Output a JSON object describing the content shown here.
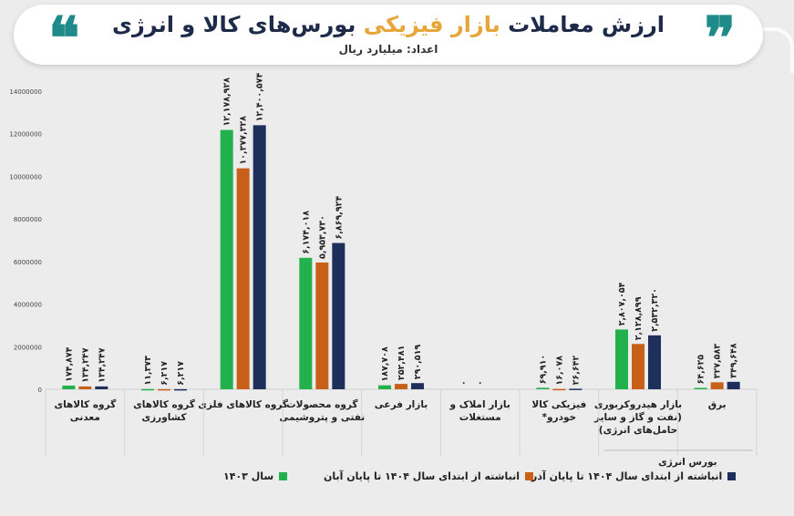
{
  "title": {
    "part1": "ارزش معاملات",
    "highlight": "بازار فیزیکی",
    "part2": "بورس‌های کالا و انرژی",
    "unit": "اعداد: میلیارد ریال"
  },
  "colors": {
    "s1403": "#22b14c",
    "s_aban": "#c8601a",
    "s_azar": "#1e2f5c",
    "accent": "#e8a53a",
    "quote": "#1e8a8a"
  },
  "chart_data": {
    "type": "bar",
    "ylim": [
      0,
      14000000
    ],
    "yticks": [
      "0",
      "2000000",
      "4000000",
      "6000000",
      "8000000",
      "10000000",
      "12000000",
      "14000000"
    ],
    "categories": [
      "برق",
      "بازار هیدروکربوری (نفت و گاز و سایر حامل‌های انرژی)",
      "فیزیکی کالا خودرو*",
      "بازار املاک و مستغلات",
      "بازار فرعی",
      "گروه محصولات نفتی و پتروشیمی",
      "گروه کالاهای فلزی",
      "گروه کالاهای کشاورزی",
      "گروه کالاهای معدنی"
    ],
    "category_lines": [
      [
        "برق"
      ],
      [
        "بازار هیدروکربوری",
        "(نفت و گاز و سایر",
        "حامل‌های انرژی)"
      ],
      [
        "فیزیکی کالا",
        "خودرو*"
      ],
      [
        "بازار املاک و",
        "مستغلات"
      ],
      [
        "بازار فرعی"
      ],
      [
        "گروه محصولات",
        "نفتی و پتروشیمی"
      ],
      [
        "گروه کالاهای فلزی"
      ],
      [
        "گروه کالاهای",
        "کشاورزی"
      ],
      [
        "گروه کالاهای",
        "معدنی"
      ]
    ],
    "group_label": "بورس انرژی",
    "series": [
      {
        "name": "سال ۱۴۰۳",
        "values": [
          64625,
          2807054,
          69910,
          0,
          187708,
          6174018,
          12178928,
          11373,
          174874
        ],
        "labels": [
          "۶۴,۶۲۵",
          "۲,۸۰۷,۰۵۴",
          "۶۹,۹۱۰",
          "۰",
          "۱۸۷,۷۰۸",
          "۶,۱۷۴,۰۱۸",
          "۱۲,۱۷۸,۹۲۸",
          "۱۱,۳۷۳",
          "۱۷۴,۸۷۴"
        ]
      },
      {
        "name": "انباشته از ابتدای سال ۱۴۰۴ تا پایان آبان",
        "values": [
          327583,
          2128899,
          16078,
          0,
          252481,
          5953730,
          10377328,
          6217,
          134247
        ],
        "labels": [
          "۳۲۷,۵۸۳",
          "۲,۱۲۸,۸۹۹",
          "۱۶,۰۷۸",
          "۰",
          "۲۵۲,۴۸۱",
          "۵,۹۵۳,۷۳۰",
          "۱۰,۳۷۷,۳۲۸",
          "۶,۲۱۷",
          "۱۳۴,۲۴۷"
        ]
      },
      {
        "name": "انباشته از ابتدای سال ۱۴۰۴ تا پایان آذر",
        "values": [
          349648,
          2532320,
          26642,
          null,
          290519,
          6869924,
          12400574,
          6217,
          134247
        ],
        "labels": [
          "۳۴۹,۶۴۸",
          "۲,۵۳۲,۳۲۰",
          "۲۶,۶۴۲",
          "",
          "۲۹۰,۵۱۹",
          "۶,۸۶۹,۹۲۴",
          "۱۲,۴۰۰,۵۷۴",
          "۶,۲۱۷",
          "۱۳۴,۲۴۷"
        ]
      }
    ]
  }
}
